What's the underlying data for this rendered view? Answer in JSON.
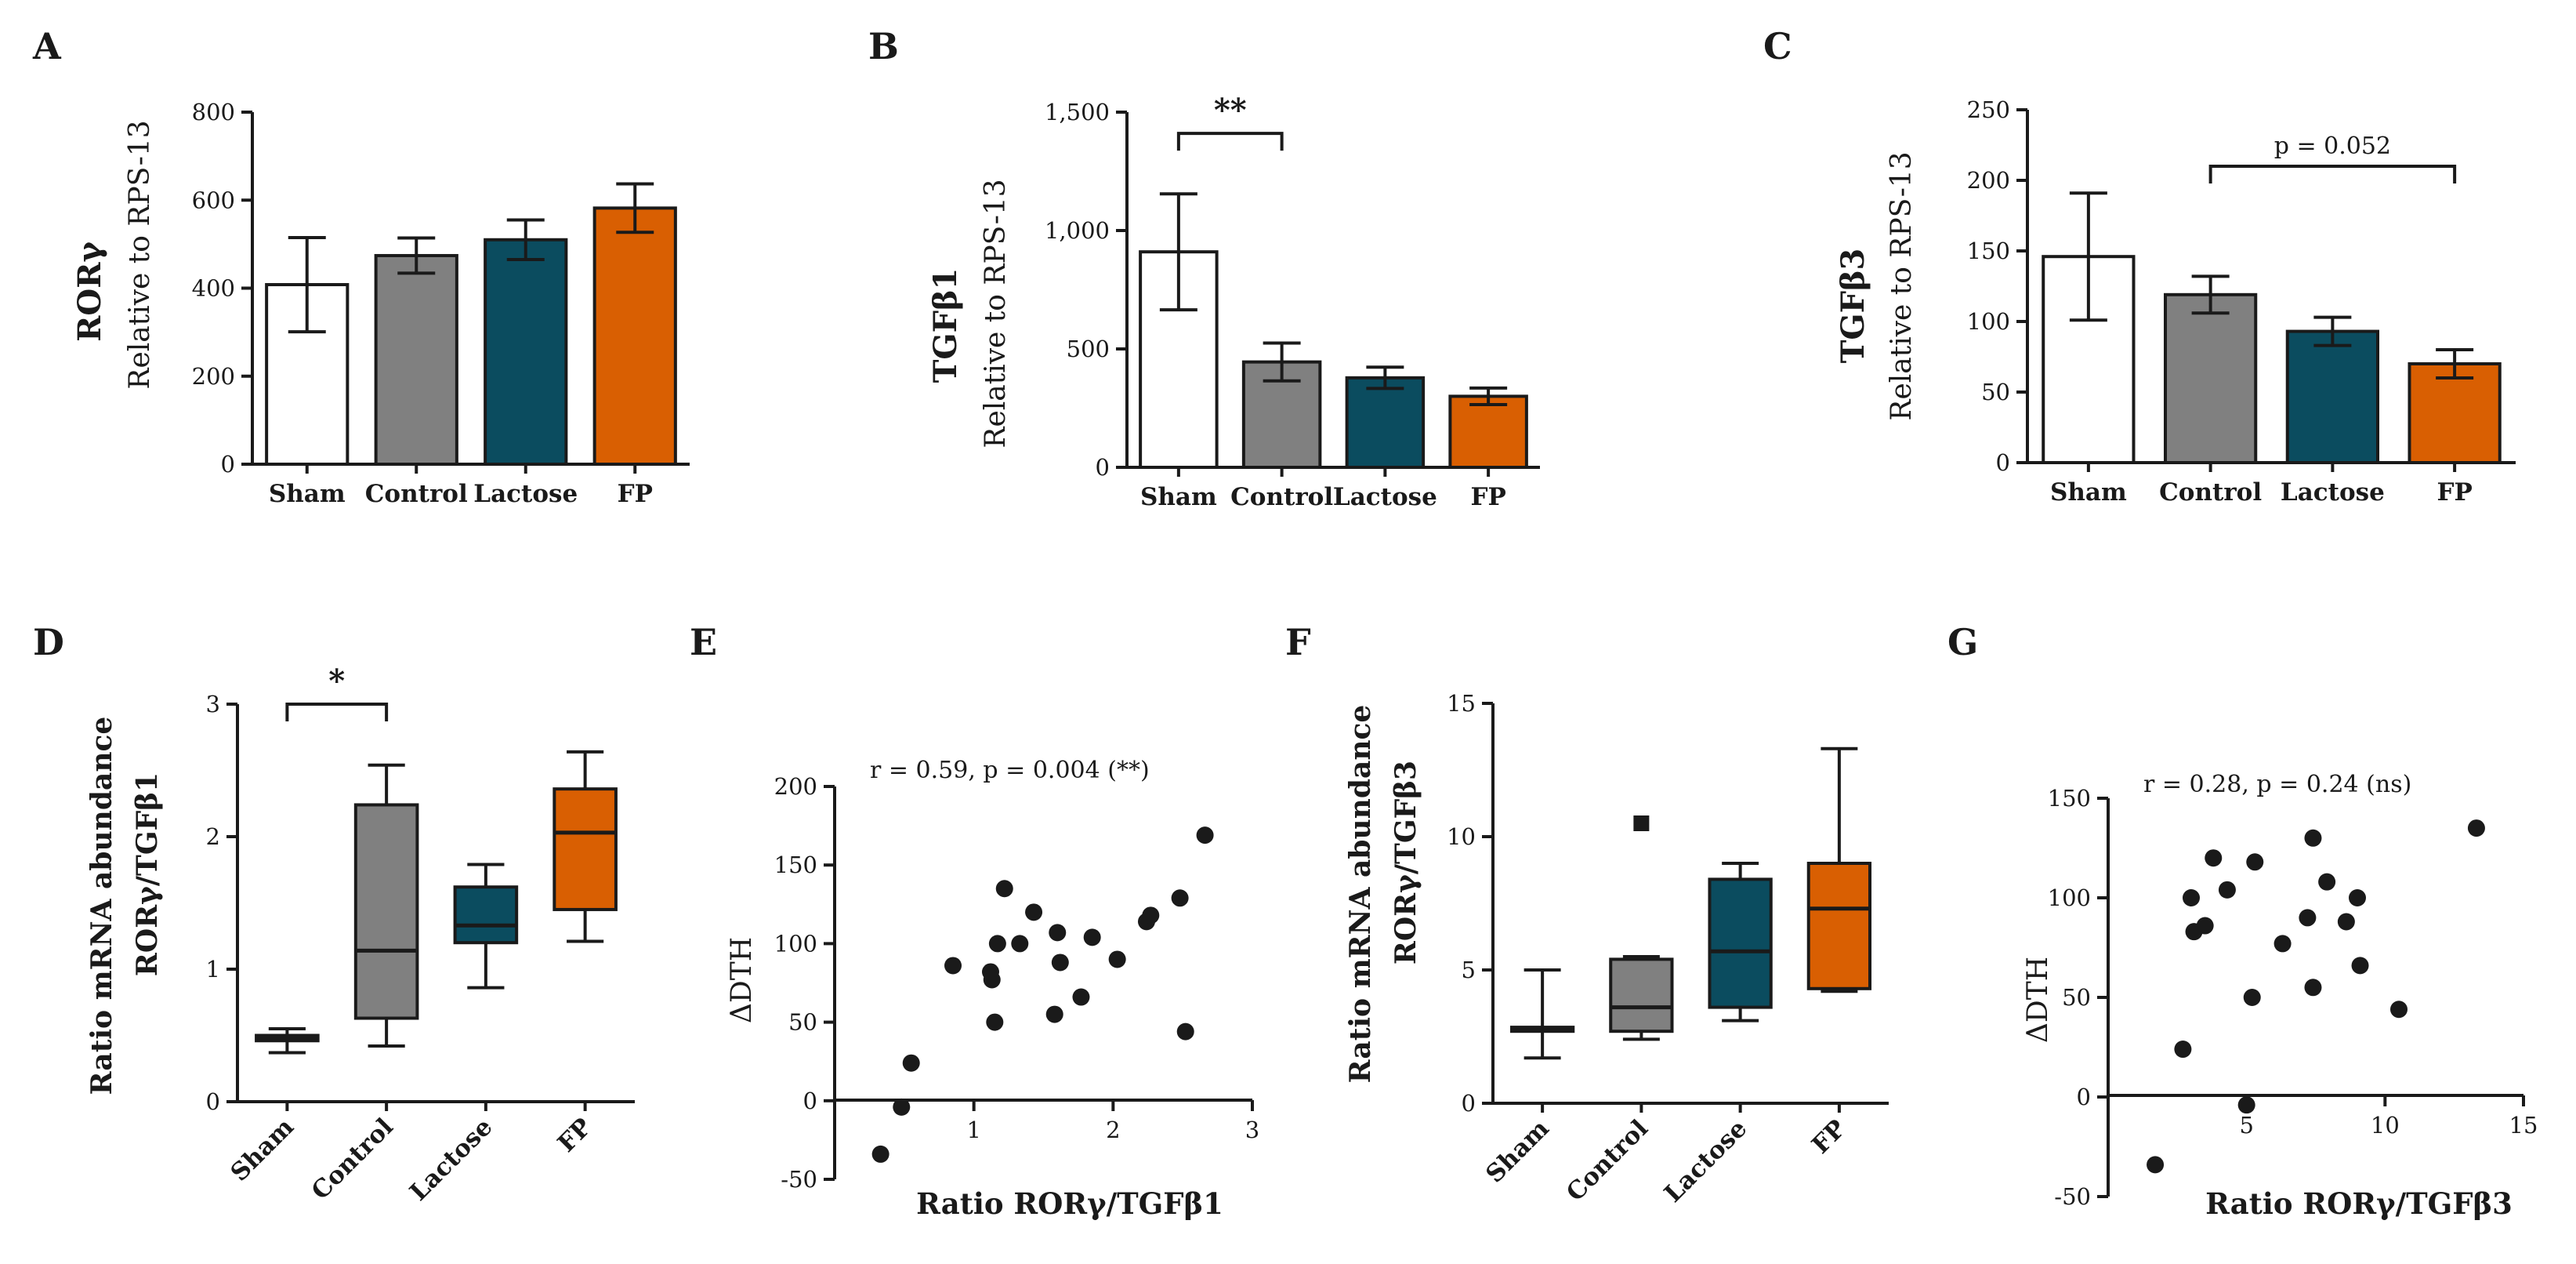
{
  "chart_data": [
    {
      "id": "A",
      "type": "bar",
      "panel_label": "A",
      "ylabel_main": "RORγ",
      "ylabel_sub": "Relative to RPS-13",
      "categories": [
        "Sham",
        "Control",
        "Lactose",
        "FP"
      ],
      "values": [
        408,
        474,
        510,
        582
      ],
      "errors": [
        107,
        40,
        45,
        55
      ],
      "ylim": [
        0,
        800
      ],
      "yticks": [
        0,
        200,
        400,
        600,
        800
      ],
      "ytick_labels": [
        "0",
        "200",
        "400",
        "600",
        "800"
      ],
      "colors": [
        "#ffffff",
        "#808080",
        "#0b4c5f",
        "#d95f02"
      ]
    },
    {
      "id": "B",
      "type": "bar",
      "panel_label": "B",
      "ylabel_main": "TGFβ1",
      "ylabel_sub": "Relative to RPS-13",
      "categories": [
        "Sham",
        "Control",
        "Lactose",
        "FP"
      ],
      "values": [
        910,
        445,
        378,
        300
      ],
      "errors": [
        245,
        80,
        45,
        35
      ],
      "ylim": [
        0,
        1500
      ],
      "yticks": [
        0,
        500,
        1000,
        1500
      ],
      "ytick_labels": [
        "0",
        "500",
        "1,000",
        "1,500"
      ],
      "colors": [
        "#ffffff",
        "#808080",
        "#0b4c5f",
        "#d95f02"
      ],
      "annotation": {
        "text": "**",
        "from": 0,
        "to": 1,
        "at": 1410
      }
    },
    {
      "id": "C",
      "type": "bar",
      "panel_label": "C",
      "ylabel_main": "TGFβ3",
      "ylabel_sub": "Relative to RPS-13",
      "categories": [
        "Sham",
        "Control",
        "Lactose",
        "FP"
      ],
      "values": [
        146,
        119,
        93,
        70
      ],
      "errors": [
        45,
        13,
        10,
        10
      ],
      "ylim": [
        0,
        250
      ],
      "yticks": [
        0,
        50,
        100,
        150,
        200,
        250
      ],
      "ytick_labels": [
        "0",
        "50",
        "100",
        "150",
        "200",
        "250"
      ],
      "colors": [
        "#ffffff",
        "#808080",
        "#0b4c5f",
        "#d95f02"
      ],
      "annotation": {
        "text": "p = 0.052",
        "from": 1,
        "to": 3,
        "at": 210
      }
    },
    {
      "id": "D",
      "type": "box",
      "panel_label": "D",
      "ylabel_line1": "Ratio mRNA abundance",
      "ylabel_line2": "RORγ/TGFβ1",
      "categories": [
        "Sham",
        "Control",
        "Lactose",
        "FP"
      ],
      "boxes": [
        {
          "min": 0.37,
          "q1": 0.46,
          "median": 0.48,
          "q3": 0.5,
          "max": 0.55
        },
        {
          "min": 0.42,
          "q1": 0.63,
          "median": 1.14,
          "q3": 2.24,
          "max": 2.54
        },
        {
          "min": 0.86,
          "q1": 1.2,
          "median": 1.33,
          "q3": 1.62,
          "max": 1.79
        },
        {
          "min": 1.21,
          "q1": 1.45,
          "median": 2.03,
          "q3": 2.36,
          "max": 2.64
        }
      ],
      "outliers": [],
      "ylim": [
        0,
        3
      ],
      "yticks": [
        0,
        1,
        2,
        3
      ],
      "ytick_labels": [
        "0",
        "1",
        "2",
        "3"
      ],
      "colors": [
        "#ffffff",
        "#808080",
        "#0b4c5f",
        "#d95f02"
      ],
      "annotation": {
        "text": "*",
        "from": 0,
        "to": 1,
        "at": 3
      }
    },
    {
      "id": "E",
      "type": "scatter",
      "panel_label": "E",
      "xlabel": "Ratio RORγ/TGFβ1",
      "ylabel": "ΔDTH",
      "annotation": "r = 0.59, p = 0.004 (**)",
      "points": [
        [
          0.33,
          -34
        ],
        [
          0.48,
          -4
        ],
        [
          0.55,
          24
        ],
        [
          0.85,
          86
        ],
        [
          1.12,
          82
        ],
        [
          1.13,
          77
        ],
        [
          1.15,
          50
        ],
        [
          1.17,
          100
        ],
        [
          1.22,
          135
        ],
        [
          1.33,
          100
        ],
        [
          1.43,
          120
        ],
        [
          1.58,
          55
        ],
        [
          1.6,
          107
        ],
        [
          1.62,
          88
        ],
        [
          1.77,
          66
        ],
        [
          1.85,
          104
        ],
        [
          2.03,
          90
        ],
        [
          2.24,
          114
        ],
        [
          2.27,
          118
        ],
        [
          2.48,
          129
        ],
        [
          2.52,
          44
        ],
        [
          2.66,
          169
        ]
      ],
      "xlim": [
        0,
        3
      ],
      "ylim": [
        -50,
        200
      ],
      "xticks": [
        1,
        2,
        3
      ],
      "xtick_labels": [
        "1",
        "2",
        "3"
      ],
      "yticks": [
        -50,
        0,
        50,
        100,
        150,
        200
      ],
      "ytick_labels": [
        "-50",
        "0",
        "50",
        "100",
        "150",
        "200"
      ]
    },
    {
      "id": "F",
      "type": "box",
      "panel_label": "F",
      "ylabel_line1": "Ratio mRNA abundance",
      "ylabel_line2": "RORγ/TGFβ3",
      "categories": [
        "Sham",
        "Control",
        "Lactose",
        "FP"
      ],
      "boxes": [
        {
          "min": 1.7,
          "q1": 2.7,
          "median": 2.75,
          "q3": 2.85,
          "max": 5.0
        },
        {
          "min": 2.4,
          "q1": 2.7,
          "median": 3.6,
          "q3": 5.4,
          "max": 5.5
        },
        {
          "min": 3.1,
          "q1": 3.6,
          "median": 5.7,
          "q3": 8.4,
          "max": 9.0
        },
        {
          "min": 4.2,
          "q1": 4.3,
          "median": 7.3,
          "q3": 9.0,
          "max": 13.3
        }
      ],
      "outliers": [
        {
          "box": 1,
          "value": 10.5
        }
      ],
      "ylim": [
        0,
        15
      ],
      "yticks": [
        0,
        5,
        10,
        15
      ],
      "ytick_labels": [
        "0",
        "5",
        "10",
        "15"
      ],
      "colors": [
        "#ffffff",
        "#808080",
        "#0b4c5f",
        "#d95f02"
      ]
    },
    {
      "id": "G",
      "type": "scatter",
      "panel_label": "G",
      "xlabel": "Ratio RORγ/TGFβ3",
      "ylabel": "ΔDTH",
      "annotation": "r = 0.28, p = 0.24 (ns)",
      "points": [
        [
          1.7,
          -34
        ],
        [
          2.7,
          24
        ],
        [
          3.0,
          100
        ],
        [
          3.1,
          83
        ],
        [
          3.5,
          86
        ],
        [
          3.8,
          120
        ],
        [
          4.3,
          104
        ],
        [
          5.0,
          -4
        ],
        [
          5.2,
          50
        ],
        [
          5.3,
          118
        ],
        [
          6.3,
          77
        ],
        [
          7.2,
          90
        ],
        [
          7.4,
          55
        ],
        [
          7.4,
          130
        ],
        [
          7.9,
          108
        ],
        [
          8.6,
          88
        ],
        [
          9.0,
          100
        ],
        [
          9.1,
          66
        ],
        [
          10.5,
          44
        ],
        [
          13.3,
          135
        ]
      ],
      "xlim": [
        0,
        15
      ],
      "ylim": [
        -50,
        150
      ],
      "xticks": [
        5,
        10,
        15
      ],
      "xtick_labels": [
        "5",
        "10",
        "15"
      ],
      "yticks": [
        -50,
        0,
        50,
        100,
        150
      ],
      "ytick_labels": [
        "-50",
        "0",
        "50",
        "100",
        "150"
      ]
    }
  ]
}
